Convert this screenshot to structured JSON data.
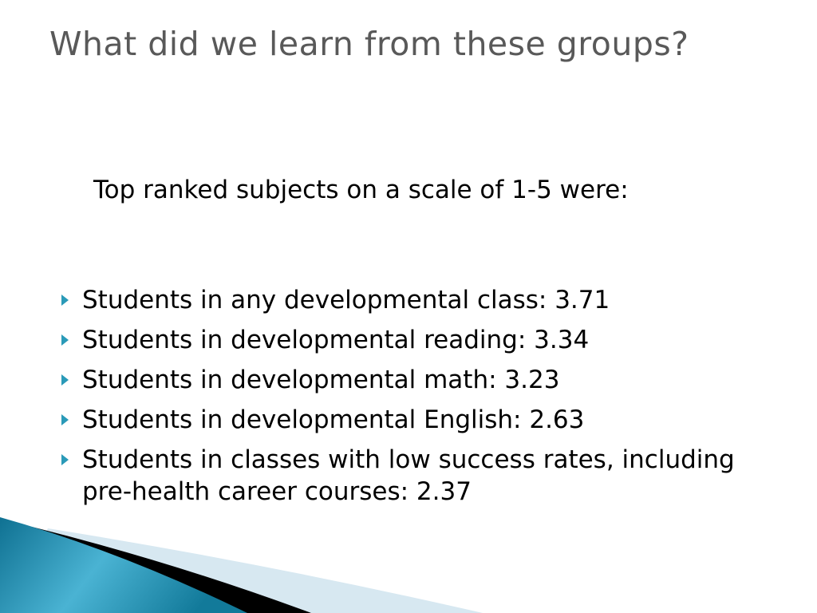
{
  "title": "What did we learn from these groups?",
  "intro": "Top ranked subjects on a scale of 1-5 were:",
  "bullets": [
    "Students in any developmental class: 3.71",
    "Students in developmental reading: 3.34",
    "Students in developmental math: 3.23",
    "Students in developmental English: 2.63",
    "Students in classes with low success rates, including pre-health career courses: 2.37"
  ],
  "colors": {
    "accent": "#2a9ab8",
    "title": "#595959"
  }
}
